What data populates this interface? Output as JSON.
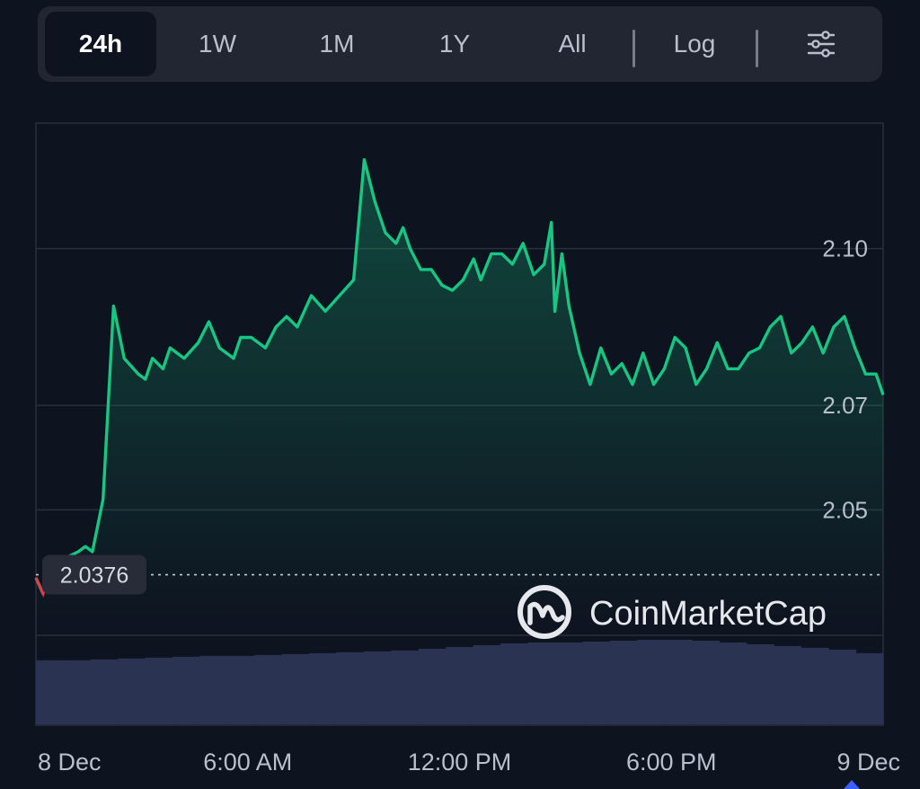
{
  "toolbar": {
    "tabs": [
      "24h",
      "1W",
      "1M",
      "1Y",
      "All"
    ],
    "active_tab": "24h",
    "log_label": "Log",
    "settings_icon": "sliders-icon"
  },
  "watermark": {
    "brand": "CoinMarketCap",
    "logo_icon": "coinmarketcap-logo-icon"
  },
  "colors": {
    "background": "#0e1320",
    "line": "#16c784",
    "volume": "#2b3352",
    "start_tick": "#ea3943"
  },
  "chart_data": {
    "type": "area",
    "title": "",
    "xlabel": "",
    "ylabel": "",
    "x_tick_labels": [
      "8 Dec",
      "6:00 AM",
      "12:00 PM",
      "6:00 PM",
      "9 Dec"
    ],
    "y_tick_labels": [
      "2.10",
      "2.07",
      "2.05"
    ],
    "ylim": [
      2.026,
      2.124
    ],
    "reference_value_label": "2.0376",
    "reference_value": 2.0376,
    "grid": true,
    "price": {
      "hours": [
        0.0,
        0.2,
        0.35,
        0.6,
        0.9,
        1.2,
        1.4,
        1.6,
        1.9,
        2.2,
        2.5,
        2.9,
        3.1,
        3.3,
        3.6,
        3.8,
        4.2,
        4.6,
        4.9,
        5.2,
        5.6,
        5.8,
        6.1,
        6.5,
        6.8,
        7.1,
        7.4,
        7.8,
        8.2,
        8.6,
        9.0,
        9.3,
        9.6,
        9.9,
        10.2,
        10.4,
        10.6,
        10.9,
        11.2,
        11.5,
        11.8,
        12.1,
        12.4,
        12.6,
        12.9,
        13.2,
        13.5,
        13.8,
        14.1,
        14.4,
        14.6,
        14.7,
        14.9,
        15.1,
        15.4,
        15.7,
        16.0,
        16.3,
        16.6,
        16.9,
        17.2,
        17.5,
        17.8,
        18.1,
        18.4,
        18.7,
        19.0,
        19.3,
        19.6,
        19.9,
        20.2,
        20.5,
        20.8,
        21.1,
        21.4,
        21.7,
        22.0,
        22.3,
        22.6,
        22.9,
        23.2,
        23.5,
        23.8,
        24.0
      ],
      "values": [
        2.037,
        2.034,
        2.038,
        2.04,
        2.041,
        2.042,
        2.043,
        2.042,
        2.052,
        2.089,
        2.079,
        2.076,
        2.075,
        2.079,
        2.077,
        2.081,
        2.079,
        2.082,
        2.086,
        2.081,
        2.079,
        2.083,
        2.083,
        2.081,
        2.085,
        2.087,
        2.085,
        2.091,
        2.088,
        2.091,
        2.094,
        2.117,
        2.109,
        2.103,
        2.101,
        2.104,
        2.1,
        2.096,
        2.096,
        2.093,
        2.092,
        2.094,
        2.098,
        2.094,
        2.099,
        2.099,
        2.097,
        2.101,
        2.095,
        2.097,
        2.105,
        2.088,
        2.099,
        2.089,
        2.08,
        2.074,
        2.081,
        2.076,
        2.078,
        2.074,
        2.08,
        2.074,
        2.077,
        2.083,
        2.081,
        2.074,
        2.077,
        2.082,
        2.077,
        2.077,
        2.08,
        2.081,
        2.085,
        2.087,
        2.08,
        2.082,
        2.085,
        2.08,
        2.085,
        2.087,
        2.081,
        2.076,
        2.076,
        2.072
      ]
    },
    "volume_relative": [
      0.72,
      0.72,
      0.73,
      0.74,
      0.75,
      0.76,
      0.77,
      0.77,
      0.78,
      0.79,
      0.8,
      0.81,
      0.82,
      0.83,
      0.85,
      0.87,
      0.89,
      0.91,
      0.92,
      0.92,
      0.93,
      0.94,
      0.95,
      0.95,
      0.94,
      0.92,
      0.9,
      0.88,
      0.86,
      0.84,
      0.8
    ]
  }
}
